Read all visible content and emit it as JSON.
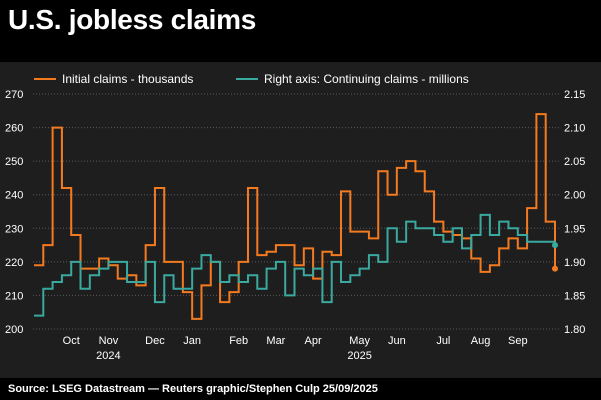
{
  "title": "U.S. jobless claims",
  "source": "Source: LSEG Datastream — Reuters graphic/Stephen Culp 25/09/2025",
  "chart_data": {
    "type": "line",
    "title": "U.S. jobless claims",
    "x_unit": "week",
    "x_start": "2024-09-07",
    "legend": [
      {
        "label": "Initial claims - thousands",
        "color": "#f47a20"
      },
      {
        "label": "Right axis: Continuing claims - millions",
        "color": "#3aa99f"
      }
    ],
    "left_axis": {
      "min": 200,
      "max": 270,
      "ticks": [
        200,
        210,
        220,
        230,
        240,
        250,
        260,
        270
      ]
    },
    "right_axis": {
      "min": 1.8,
      "max": 2.15,
      "ticks": [
        "1.80",
        "1.85",
        "1.90",
        "1.95",
        "2.00",
        "2.05",
        "2.10",
        "2.15"
      ]
    },
    "x_month_labels": [
      {
        "label": "Oct",
        "week": 4
      },
      {
        "label": "Nov",
        "week": 8
      },
      {
        "label": "Dec",
        "week": 13
      },
      {
        "label": "Jan",
        "week": 17
      },
      {
        "label": "Feb",
        "week": 22
      },
      {
        "label": "Mar",
        "week": 26
      },
      {
        "label": "Apr",
        "week": 30
      },
      {
        "label": "May",
        "week": 35
      },
      {
        "label": "Jun",
        "week": 39
      },
      {
        "label": "Jul",
        "week": 44
      },
      {
        "label": "Aug",
        "week": 48
      },
      {
        "label": "Sep",
        "week": 52
      }
    ],
    "x_year_labels": [
      {
        "label": "2024",
        "week": 8
      },
      {
        "label": "2025",
        "week": 35
      }
    ],
    "series": [
      {
        "name": "Initial claims - thousands",
        "axis": "left",
        "color": "#f47a20",
        "values": [
          219,
          225,
          260,
          242,
          228,
          218,
          218,
          221,
          219,
          215,
          216,
          213,
          225,
          242,
          220,
          220,
          211,
          203,
          213,
          220,
          208,
          211,
          220,
          242,
          222,
          223,
          225,
          225,
          219,
          224,
          215,
          223,
          222,
          241,
          229,
          229,
          227,
          247,
          240,
          248,
          250,
          247,
          241,
          232,
          229,
          228,
          227,
          221,
          217,
          219,
          224,
          227,
          224,
          236,
          264,
          232,
          218
        ]
      },
      {
        "name": "Continuing claims - millions",
        "axis": "right",
        "color": "#3aa99f",
        "values": [
          1.82,
          1.86,
          1.87,
          1.88,
          1.9,
          1.86,
          1.88,
          1.89,
          1.9,
          1.9,
          1.87,
          1.87,
          1.9,
          1.84,
          1.88,
          1.86,
          1.86,
          1.89,
          1.91,
          1.9,
          1.87,
          1.88,
          1.87,
          1.88,
          1.86,
          1.89,
          1.9,
          1.85,
          1.89,
          1.88,
          1.89,
          1.84,
          1.9,
          1.87,
          1.88,
          1.89,
          1.91,
          1.9,
          1.95,
          1.93,
          1.96,
          1.95,
          1.95,
          1.94,
          1.93,
          1.95,
          1.92,
          1.94,
          1.97,
          1.94,
          1.96,
          1.95,
          1.94,
          1.93,
          1.93,
          1.93,
          1.925
        ]
      }
    ]
  }
}
